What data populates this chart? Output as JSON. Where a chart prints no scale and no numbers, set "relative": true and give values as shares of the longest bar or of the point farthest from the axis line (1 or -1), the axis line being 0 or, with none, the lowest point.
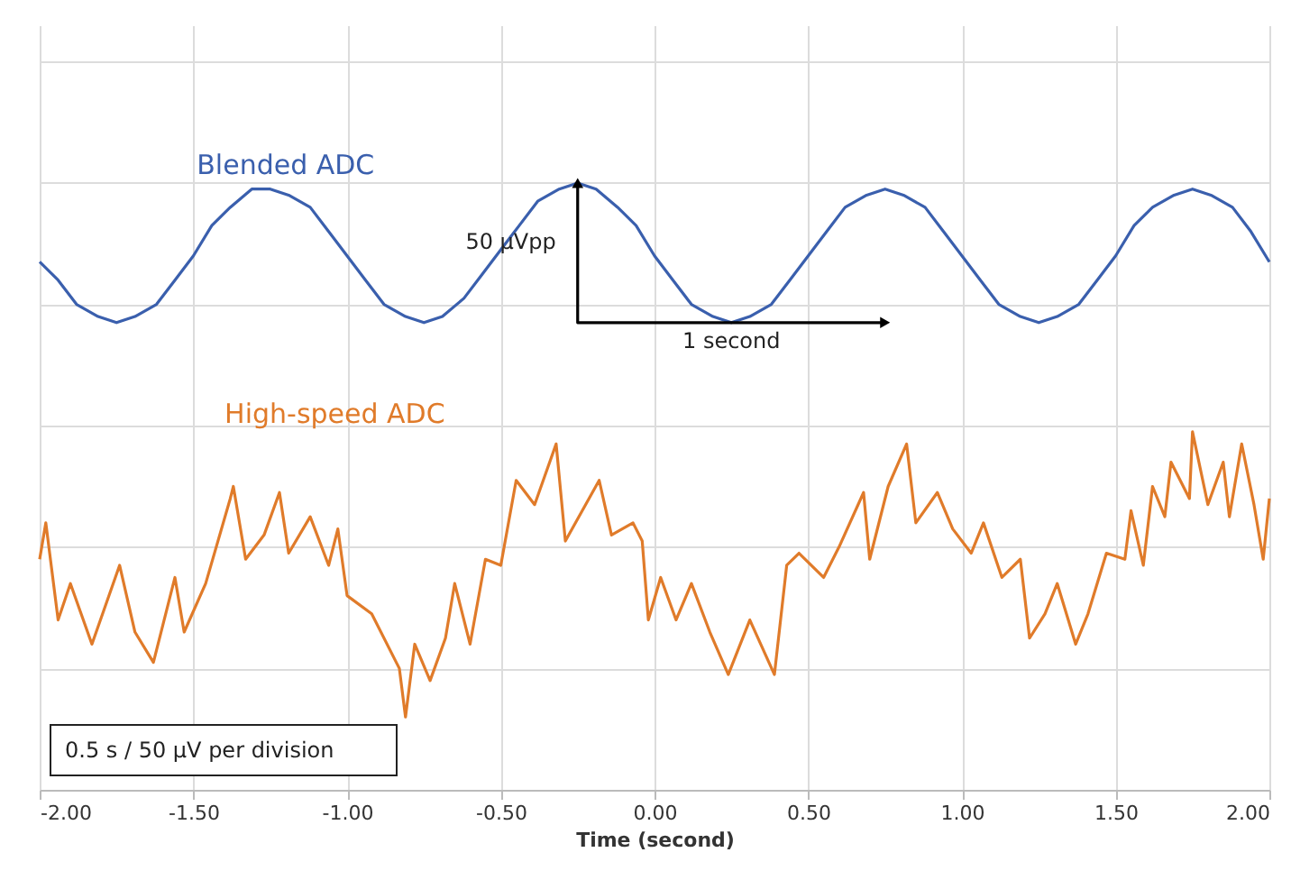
{
  "chart_data": {
    "type": "line",
    "relative": true,
    "xlabel": "Time (second)",
    "xlim": [
      -2,
      2
    ],
    "xticks": [
      {
        "value": -2,
        "label": "-2.00"
      },
      {
        "value": -1.5,
        "label": "-1.50"
      },
      {
        "value": -1,
        "label": "-1.00"
      },
      {
        "value": -0.5,
        "label": "-0.50"
      },
      {
        "value": 0,
        "label": "0.00"
      },
      {
        "value": 0.5,
        "label": "0.50"
      },
      {
        "value": 1,
        "label": "1.00"
      },
      {
        "value": 1.5,
        "label": "1.50"
      },
      {
        "value": 2,
        "label": "2.00"
      }
    ],
    "grid": true,
    "legend": false,
    "line_style": "solid",
    "series": [
      {
        "name": "Blended ADC",
        "color": "#3a5fad",
        "x": [
          -2.0,
          -1.94,
          -1.88,
          -1.81,
          -1.75,
          -1.69,
          -1.62,
          -1.56,
          -1.5,
          -1.44,
          -1.38,
          -1.31,
          -1.25,
          -1.19,
          -1.12,
          -1.06,
          -1.0,
          -0.94,
          -0.88,
          -0.81,
          -0.75,
          -0.69,
          -0.62,
          -0.56,
          -0.5,
          -0.44,
          -0.38,
          -0.31,
          -0.25,
          -0.19,
          -0.12,
          -0.06,
          0.0,
          0.06,
          0.12,
          0.19,
          0.25,
          0.31,
          0.38,
          0.44,
          0.5,
          0.56,
          0.62,
          0.69,
          0.75,
          0.81,
          0.88,
          0.94,
          1.0,
          1.06,
          1.12,
          1.19,
          1.25,
          1.31,
          1.38,
          1.44,
          1.5,
          1.56,
          1.62,
          1.69,
          1.75,
          1.81,
          1.88,
          1.94,
          2.0
        ],
        "values": [
          0.87,
          0.84,
          0.8,
          0.78,
          0.77,
          0.78,
          0.8,
          0.84,
          0.88,
          0.93,
          0.96,
          0.99,
          0.99,
          0.98,
          0.96,
          0.92,
          0.88,
          0.84,
          0.8,
          0.78,
          0.77,
          0.78,
          0.81,
          0.85,
          0.89,
          0.93,
          0.97,
          0.99,
          1.0,
          0.99,
          0.96,
          0.93,
          0.88,
          0.84,
          0.8,
          0.78,
          0.77,
          0.78,
          0.8,
          0.84,
          0.88,
          0.92,
          0.96,
          0.98,
          0.99,
          0.98,
          0.96,
          0.92,
          0.88,
          0.84,
          0.8,
          0.78,
          0.77,
          0.78,
          0.8,
          0.84,
          0.88,
          0.93,
          0.96,
          0.98,
          0.99,
          0.98,
          0.96,
          0.92,
          0.87
        ]
      },
      {
        "name": "High-speed ADC",
        "color": "#e07b2a",
        "x": [
          -2.0,
          -1.98,
          -1.94,
          -1.9,
          -1.83,
          -1.74,
          -1.69,
          -1.63,
          -1.56,
          -1.53,
          -1.46,
          -1.38,
          -1.37,
          -1.33,
          -1.27,
          -1.22,
          -1.19,
          -1.12,
          -1.06,
          -1.03,
          -1.0,
          -0.92,
          -0.83,
          -0.81,
          -0.78,
          -0.73,
          -0.68,
          -0.65,
          -0.6,
          -0.55,
          -0.5,
          -0.45,
          -0.39,
          -0.32,
          -0.29,
          -0.18,
          -0.14,
          -0.07,
          -0.04,
          -0.02,
          0.02,
          0.07,
          0.12,
          0.18,
          0.24,
          0.31,
          0.39,
          0.43,
          0.47,
          0.55,
          0.6,
          0.68,
          0.7,
          0.76,
          0.82,
          0.85,
          0.92,
          0.97,
          1.03,
          1.07,
          1.13,
          1.19,
          1.22,
          1.27,
          1.31,
          1.37,
          1.41,
          1.47,
          1.53,
          1.55,
          1.59,
          1.62,
          1.66,
          1.68,
          1.74,
          1.75,
          1.8,
          1.85,
          1.87,
          1.91,
          1.95,
          1.98,
          2.0
        ],
        "values": [
          0.38,
          0.44,
          0.28,
          0.34,
          0.24,
          0.37,
          0.26,
          0.21,
          0.35,
          0.26,
          0.34,
          0.48,
          0.5,
          0.38,
          0.42,
          0.49,
          0.39,
          0.45,
          0.37,
          0.43,
          0.32,
          0.29,
          0.2,
          0.12,
          0.24,
          0.18,
          0.25,
          0.34,
          0.24,
          0.38,
          0.37,
          0.51,
          0.47,
          0.57,
          0.41,
          0.51,
          0.42,
          0.44,
          0.41,
          0.28,
          0.35,
          0.28,
          0.34,
          0.26,
          0.19,
          0.28,
          0.19,
          0.37,
          0.39,
          0.35,
          0.4,
          0.49,
          0.38,
          0.5,
          0.57,
          0.44,
          0.49,
          0.43,
          0.39,
          0.44,
          0.35,
          0.38,
          0.25,
          0.29,
          0.34,
          0.24,
          0.29,
          0.39,
          0.38,
          0.46,
          0.37,
          0.5,
          0.45,
          0.54,
          0.48,
          0.59,
          0.47,
          0.54,
          0.45,
          0.57,
          0.47,
          0.38,
          0.48
        ]
      },
      {
        "type": "line",
        "color": "#000000",
        "x": [
          -0.25,
          -0.25,
          0.75
        ],
        "values": [
          1.0,
          0.77,
          0.77
        ]
      }
    ],
    "annotations": [
      "0.5 s / 50 µV per division",
      {
        "text": "50 µVpp",
        "x": -0.25,
        "y": 0.885
      },
      {
        "text": "1 second",
        "x": 0.25,
        "y": 0.77
      }
    ]
  }
}
